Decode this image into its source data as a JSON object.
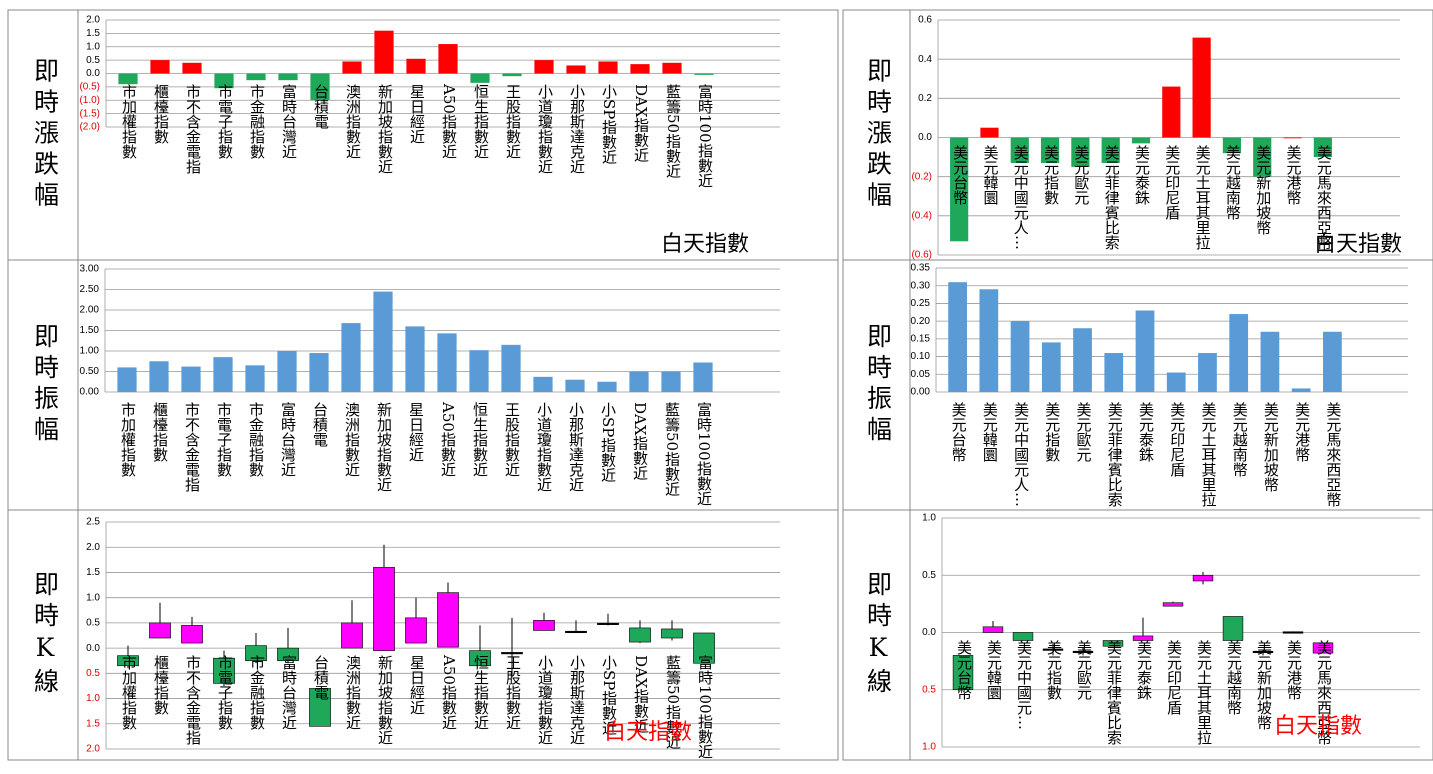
{
  "chart_data": [
    {
      "type": "bar",
      "side_label": "即時漲跌幅",
      "annotation": "白天指數",
      "annotation_color": "#000000",
      "categories": [
        "市加權指數",
        "櫃檯指數",
        "市不含金電指",
        "市電子指數",
        "市金融指數",
        "富時台灣近",
        "台積電",
        "澳洲指數近",
        "新加坡指數近",
        "星日經近",
        "A50指數近",
        "恒生指數近",
        "王股指數近",
        "小道瓊指數近",
        "小那斯達克近",
        "小SP指數近",
        "DAX指數近",
        "藍籌50指數近",
        "富時100指數近"
      ],
      "values": [
        -0.4,
        0.5,
        0.4,
        -0.55,
        -0.25,
        -0.25,
        -1.0,
        0.45,
        1.6,
        0.55,
        1.1,
        -0.35,
        -0.1,
        0.5,
        0.3,
        0.45,
        0.35,
        0.4,
        -0.05
      ],
      "up_color": "#ff0000",
      "down_color": "#1fa85a",
      "ylim": [
        -2,
        2
      ],
      "yticks": [
        {
          "value": 2,
          "label": "2.0"
        },
        {
          "value": 1.5,
          "label": "1.5"
        },
        {
          "value": 1,
          "label": "1.0"
        },
        {
          "value": 0.5,
          "label": "0.5"
        },
        {
          "value": 0,
          "label": "0.0"
        },
        {
          "value": -0.5,
          "label": "(0.5)"
        },
        {
          "value": -1,
          "label": "(1.0)"
        },
        {
          "value": -1.5,
          "label": "(1.5)"
        },
        {
          "value": -2,
          "label": "(2.0)"
        }
      ],
      "grid": true
    },
    {
      "type": "bar",
      "side_label": "即時漲跌幅",
      "annotation": "白天指數",
      "annotation_color": "#000000",
      "categories": [
        "美元台幣",
        "美元韓圜",
        "美元中國元人…",
        "美元指數",
        "美元歐元",
        "美元菲律賓比索",
        "美元泰銖",
        "美元印尼盾",
        "美元土耳其里拉",
        "美元越南幣",
        "美元新加坡幣",
        "美元港幣",
        "美元馬來西亞幣"
      ],
      "values": [
        -0.53,
        0.05,
        -0.13,
        -0.13,
        -0.15,
        -0.13,
        -0.03,
        0.26,
        0.51,
        -0.08,
        -0.2,
        0,
        -0.1
      ],
      "up_color": "#ff0000",
      "down_color": "#1fa85a",
      "ylim": [
        -0.6,
        0.6
      ],
      "yticks": [
        {
          "value": 0.6,
          "label": "0.6"
        },
        {
          "value": 0.4,
          "label": "0.4"
        },
        {
          "value": 0.2,
          "label": "0.2"
        },
        {
          "value": 0,
          "label": "0.0"
        },
        {
          "value": -0.2,
          "label": "(0.2)"
        },
        {
          "value": -0.4,
          "label": "(0.4)"
        },
        {
          "value": -0.6,
          "label": "(0.6)"
        }
      ],
      "grid": true
    },
    {
      "type": "bar",
      "side_label": "即時振幅",
      "categories": [
        "市加權指數",
        "櫃檯指數",
        "市不含金電指",
        "市電子指數",
        "市金融指數",
        "富時台灣近",
        "台積電",
        "澳洲指數近",
        "新加坡指數近",
        "星日經近",
        "A50指數近",
        "恒生指數近",
        "王股指數近",
        "小道瓊指數近",
        "小那斯達克近",
        "小SP指數近",
        "DAX指數近",
        "藍籌50指數近",
        "富時100指數近"
      ],
      "values": [
        0.6,
        0.75,
        0.62,
        0.85,
        0.65,
        1.0,
        0.95,
        1.68,
        2.45,
        1.6,
        1.43,
        1.02,
        1.15,
        0.37,
        0.3,
        0.25,
        0.5,
        0.5,
        0.72
      ],
      "color": "#5b9bd5",
      "ylim": [
        0,
        3
      ],
      "yticks": [
        {
          "value": 3,
          "label": "3.00"
        },
        {
          "value": 2.5,
          "label": "2.50"
        },
        {
          "value": 2,
          "label": "2.00"
        },
        {
          "value": 1.5,
          "label": "1.50"
        },
        {
          "value": 1,
          "label": "1.00"
        },
        {
          "value": 0.5,
          "label": "0.50"
        },
        {
          "value": 0,
          "label": "0.00"
        }
      ],
      "grid": true
    },
    {
      "type": "bar",
      "side_label": "即時振幅",
      "categories": [
        "美元台幣",
        "美元韓圜",
        "美元中國元人…",
        "美元指數",
        "美元歐元",
        "美元菲律賓比索",
        "美元泰銖",
        "美元印尼盾",
        "美元土耳其里拉",
        "美元越南幣",
        "美元新加坡幣",
        "美元港幣",
        "美元馬來西亞幣"
      ],
      "values": [
        0.31,
        0.29,
        0.2,
        0.14,
        0.18,
        0.11,
        0.23,
        0.055,
        0.11,
        0.22,
        0.17,
        0.01,
        0.17
      ],
      "color": "#5b9bd5",
      "ylim": [
        0,
        0.35
      ],
      "yticks": [
        {
          "value": 0.35,
          "label": "0.35"
        },
        {
          "value": 0.3,
          "label": "0.30"
        },
        {
          "value": 0.25,
          "label": "0.25"
        },
        {
          "value": 0.2,
          "label": "0.20"
        },
        {
          "value": 0.15,
          "label": "0.15"
        },
        {
          "value": 0.1,
          "label": "0.10"
        },
        {
          "value": 0.05,
          "label": "0.05"
        },
        {
          "value": 0,
          "label": "0.00"
        }
      ],
      "grid": true
    },
    {
      "type": "candlestick",
      "side_label": "即時K線",
      "annotation": "白天指數",
      "annotation_color": "#ff0000",
      "categories": [
        "市加權指數",
        "櫃檯指數",
        "市不含金電指",
        "市電子指數",
        "市金融指數",
        "富時台灣近",
        "台積電",
        "澳洲指數近",
        "新加坡指數近",
        "星日經近",
        "A50指數近",
        "恒生指數近",
        "王股指數近",
        "小道瓊指數近",
        "小那斯達克近",
        "小SP指數近",
        "DAX指數近",
        "藍籌50指數近",
        "富時100指數近"
      ],
      "open": [
        -0.15,
        0.2,
        0.1,
        -0.2,
        0.05,
        0,
        -0.8,
        0,
        -0.05,
        0.1,
        0.02,
        -0.05,
        -0.1,
        0.35,
        0.32,
        0.48,
        0.4,
        0.38,
        0.3
      ],
      "high": [
        0.05,
        0.9,
        0.62,
        -0.05,
        0.3,
        0.4,
        -0.8,
        0.95,
        2.05,
        1.0,
        1.3,
        0.45,
        0.6,
        0.7,
        0.55,
        0.68,
        0.55,
        0.55,
        0.3
      ],
      "low": [
        -0.4,
        0.2,
        0.1,
        -0.75,
        -0.3,
        -0.3,
        -1.55,
        0,
        -0.05,
        0.1,
        0.02,
        -0.35,
        -0.55,
        0.35,
        0.3,
        0.45,
        0.1,
        0.15,
        -0.3
      ],
      "close": [
        -0.35,
        0.5,
        0.45,
        -0.7,
        -0.25,
        -0.25,
        -1.55,
        0.5,
        1.6,
        0.6,
        1.1,
        -0.35,
        -0.1,
        0.55,
        0.32,
        0.48,
        0.12,
        0.2,
        -0.3
      ],
      "up_color": "#ff00ff",
      "down_color": "#1fa85a",
      "ylim": [
        -2,
        2.5
      ],
      "yticks": [
        {
          "value": 2.5,
          "label": "2.5"
        },
        {
          "value": 2,
          "label": "2.0"
        },
        {
          "value": 1.5,
          "label": "1.5"
        },
        {
          "value": 1,
          "label": "1.0"
        },
        {
          "value": 0.5,
          "label": "0.5"
        },
        {
          "value": 0,
          "label": "0.0"
        },
        {
          "value": -0.5,
          "label": "0.5"
        },
        {
          "value": -1,
          "label": "1.0"
        },
        {
          "value": -1.5,
          "label": "1.5"
        },
        {
          "value": -2,
          "label": "2.0"
        }
      ],
      "grid": true
    },
    {
      "type": "candlestick",
      "side_label": "即時K線",
      "annotation": "白天指數",
      "annotation_color": "#ff0000",
      "categories": [
        "美元台幣",
        "美元韓圜",
        "美元中國元…",
        "美元指數",
        "美元歐元",
        "美元菲律賓比索",
        "美元泰銖",
        "美元印尼盾",
        "美元土耳其里拉",
        "美元越南幣",
        "美元新加坡幣",
        "美元港幣",
        "美元馬來西亞幣"
      ],
      "open": [
        -0.2,
        0,
        0,
        -0.15,
        -0.17,
        -0.07,
        -0.07,
        0.23,
        0.45,
        0.14,
        -0.17,
        0,
        -0.18
      ],
      "high": [
        -0.2,
        0.1,
        0,
        -0.1,
        -0.13,
        -0.07,
        0.13,
        0.27,
        0.53,
        0.14,
        -0.15,
        0.01,
        -0.09
      ],
      "low": [
        -0.5,
        0,
        -0.07,
        -0.2,
        -0.2,
        -0.12,
        -0.07,
        0.23,
        0.42,
        -0.07,
        -0.2,
        0,
        -0.18
      ],
      "close": [
        -0.5,
        0.05,
        -0.07,
        -0.15,
        -0.17,
        -0.12,
        -0.03,
        0.26,
        0.5,
        -0.07,
        -0.17,
        0,
        -0.09
      ],
      "up_color": "#ff00ff",
      "down_color": "#1fa85a",
      "ylim": [
        -1,
        1
      ],
      "yticks": [
        {
          "value": 1,
          "label": "1.0"
        },
        {
          "value": 0.5,
          "label": "0.5"
        },
        {
          "value": 0,
          "label": "0.0"
        },
        {
          "value": -0.5,
          "label": "0.5"
        },
        {
          "value": -1,
          "label": "1.0"
        }
      ],
      "grid": true
    }
  ]
}
